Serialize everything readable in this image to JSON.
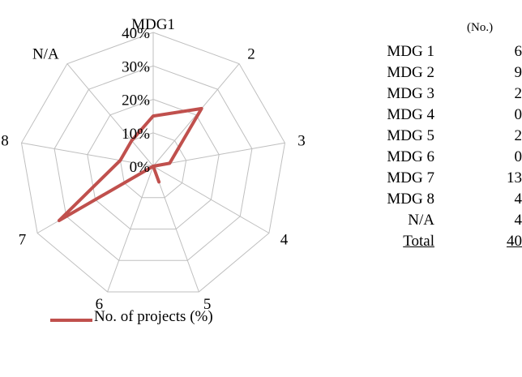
{
  "chart_data": {
    "type": "radar",
    "axes": [
      "MDG1",
      "2",
      "3",
      "4",
      "5",
      "6",
      "7",
      "8",
      "N/A"
    ],
    "radial_ticks": [
      "0%",
      "10%",
      "20%",
      "30%",
      "40%"
    ],
    "rlim": [
      0,
      40
    ],
    "series": [
      {
        "name": "No. of projects (%)",
        "values": [
          15,
          22.5,
          5,
          0,
          5,
          0,
          32.5,
          10,
          10
        ],
        "color": "#c0504d"
      }
    ],
    "legend_position": "bottom",
    "grid": true
  },
  "table": {
    "unit": "(No.)",
    "rows": [
      {
        "label": "MDG 1",
        "value": "6"
      },
      {
        "label": "MDG 2",
        "value": "9"
      },
      {
        "label": "MDG 3",
        "value": "2"
      },
      {
        "label": "MDG 4",
        "value": "0"
      },
      {
        "label": "MDG 5",
        "value": "2"
      },
      {
        "label": "MDG 6",
        "value": "0"
      },
      {
        "label": "MDG 7",
        "value": "13"
      },
      {
        "label": "MDG 8",
        "value": "4"
      },
      {
        "label": "N/A",
        "value": "4"
      }
    ],
    "total": {
      "label": "Total",
      "value": "40"
    }
  }
}
